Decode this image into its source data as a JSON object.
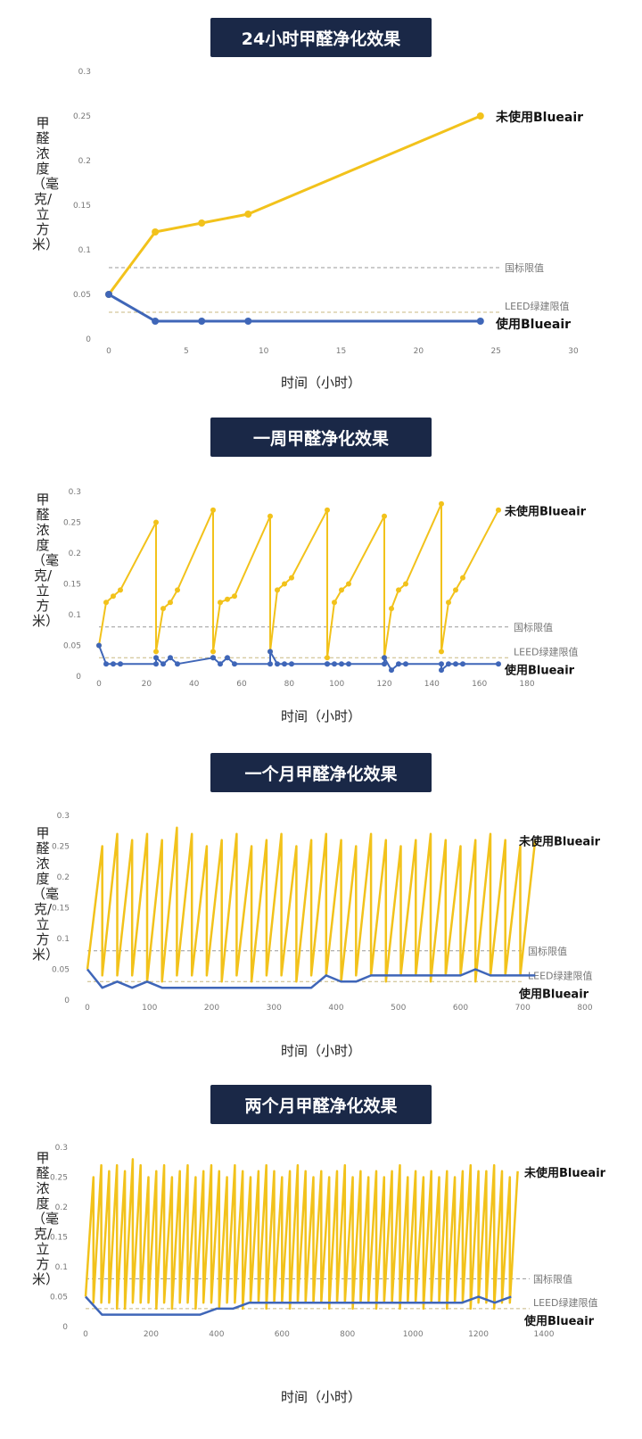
{
  "colors": {
    "unused": "#f2c21b",
    "used": "#3f66b8",
    "title_bg": "#1a2847",
    "limit": "#9a9a9a",
    "leed": "#c8b880"
  },
  "common": {
    "ylabel": "甲醛浓度（毫克/立方米）",
    "xlabel": "时间（小时）",
    "series_unused": "未使用Blueair",
    "series_used": "使用Blueair",
    "national_limit_label": "国标限值",
    "leed_limit_label": "LEED绿建限值",
    "national_limit": 0.08,
    "leed_limit": 0.03
  },
  "chart_data": [
    {
      "type": "line",
      "title": "24小时甲醛净化效果",
      "xlim": [
        0,
        30
      ],
      "ylim": [
        0,
        0.3
      ],
      "xticks": [
        0,
        5,
        10,
        15,
        20,
        25,
        30
      ],
      "yticks": [
        0,
        0.05,
        0.1,
        0.15,
        0.2,
        0.25,
        0.3
      ],
      "series": [
        {
          "name": "未使用Blueair",
          "x": [
            0,
            3,
            6,
            9,
            24
          ],
          "y": [
            0.05,
            0.12,
            0.13,
            0.14,
            0.25
          ]
        },
        {
          "name": "使用Blueair",
          "x": [
            0,
            3,
            6,
            9,
            24
          ],
          "y": [
            0.05,
            0.02,
            0.02,
            0.02,
            0.02
          ]
        }
      ]
    },
    {
      "type": "line",
      "title": "一周甲醛净化效果",
      "xlim": [
        0,
        180
      ],
      "ylim": [
        0,
        0.3
      ],
      "xticks": [
        0,
        20,
        40,
        60,
        80,
        100,
        120,
        140,
        160,
        180
      ],
      "yticks": [
        0,
        0.05,
        0.1,
        0.15,
        0.2,
        0.25,
        0.3
      ],
      "series": [
        {
          "name": "未使用Blueair",
          "x": [
            0,
            3,
            6,
            9,
            24,
            24,
            27,
            30,
            33,
            48,
            48,
            51,
            54,
            57,
            72,
            72,
            75,
            78,
            81,
            96,
            96,
            99,
            102,
            105,
            120,
            120,
            123,
            126,
            129,
            144,
            144,
            147,
            150,
            153,
            168
          ],
          "y": [
            0.05,
            0.12,
            0.13,
            0.14,
            0.25,
            0.04,
            0.11,
            0.12,
            0.14,
            0.27,
            0.04,
            0.12,
            0.125,
            0.13,
            0.26,
            0.04,
            0.14,
            0.15,
            0.16,
            0.27,
            0.03,
            0.12,
            0.14,
            0.15,
            0.26,
            0.03,
            0.11,
            0.14,
            0.15,
            0.28,
            0.04,
            0.12,
            0.14,
            0.16,
            0.27
          ]
        },
        {
          "name": "使用Blueair",
          "x": [
            0,
            3,
            6,
            9,
            24,
            24,
            27,
            30,
            33,
            48,
            48,
            51,
            54,
            57,
            72,
            72,
            75,
            78,
            81,
            96,
            96,
            99,
            102,
            105,
            120,
            120,
            123,
            126,
            129,
            144,
            144,
            147,
            150,
            153,
            168
          ],
          "y": [
            0.05,
            0.02,
            0.02,
            0.02,
            0.02,
            0.03,
            0.02,
            0.03,
            0.02,
            0.03,
            0.03,
            0.02,
            0.03,
            0.02,
            0.02,
            0.04,
            0.02,
            0.02,
            0.02,
            0.02,
            0.02,
            0.02,
            0.02,
            0.02,
            0.02,
            0.03,
            0.01,
            0.02,
            0.02,
            0.02,
            0.01,
            0.02,
            0.02,
            0.02,
            0.02
          ]
        }
      ]
    },
    {
      "type": "line",
      "title": "一个月甲醛净化效果",
      "xlim": [
        0,
        800
      ],
      "ylim": [
        0,
        0.3
      ],
      "xticks": [
        0,
        100,
        200,
        300,
        400,
        500,
        600,
        700,
        800
      ],
      "yticks": [
        0,
        0.05,
        0.1,
        0.15,
        0.2,
        0.25,
        0.3
      ],
      "series": [
        {
          "name": "未使用Blueair",
          "x": [
            0,
            24,
            24,
            48,
            48,
            72,
            72,
            96,
            96,
            120,
            120,
            144,
            144,
            168,
            168,
            192,
            192,
            216,
            216,
            240,
            240,
            264,
            264,
            288,
            288,
            312,
            312,
            336,
            336,
            360,
            360,
            384,
            384,
            408,
            408,
            432,
            432,
            456,
            456,
            480,
            480,
            504,
            504,
            528,
            528,
            552,
            552,
            576,
            576,
            600,
            600,
            624,
            624,
            648,
            648,
            672,
            672,
            696,
            696,
            720
          ],
          "y": [
            0.05,
            0.25,
            0.04,
            0.27,
            0.04,
            0.26,
            0.04,
            0.27,
            0.03,
            0.26,
            0.03,
            0.28,
            0.04,
            0.27,
            0.04,
            0.25,
            0.04,
            0.26,
            0.03,
            0.27,
            0.04,
            0.25,
            0.03,
            0.26,
            0.04,
            0.27,
            0.04,
            0.25,
            0.03,
            0.26,
            0.04,
            0.27,
            0.04,
            0.26,
            0.03,
            0.25,
            0.04,
            0.27,
            0.04,
            0.26,
            0.03,
            0.25,
            0.04,
            0.26,
            0.04,
            0.27,
            0.03,
            0.26,
            0.04,
            0.25,
            0.04,
            0.26,
            0.03,
            0.27,
            0.04,
            0.26,
            0.04,
            0.25,
            0.04,
            0.26
          ]
        },
        {
          "name": "使用Blueair",
          "x": [
            0,
            24,
            48,
            72,
            96,
            120,
            144,
            168,
            192,
            216,
            240,
            264,
            288,
            312,
            336,
            360,
            384,
            408,
            432,
            456,
            480,
            504,
            528,
            552,
            576,
            600,
            624,
            648,
            672,
            696,
            720
          ],
          "y": [
            0.05,
            0.02,
            0.03,
            0.02,
            0.03,
            0.02,
            0.02,
            0.02,
            0.02,
            0.02,
            0.02,
            0.02,
            0.02,
            0.02,
            0.02,
            0.02,
            0.04,
            0.03,
            0.03,
            0.04,
            0.04,
            0.04,
            0.04,
            0.04,
            0.04,
            0.04,
            0.05,
            0.04,
            0.04,
            0.04,
            0.04
          ]
        }
      ]
    },
    {
      "type": "line",
      "title": "两个月甲醛净化效果",
      "xlim": [
        0,
        1400
      ],
      "ylim": [
        0,
        0.3
      ],
      "xticks": [
        0,
        200,
        400,
        600,
        800,
        1000,
        1200,
        1400
      ],
      "yticks": [
        0,
        0.05,
        0.1,
        0.15,
        0.2,
        0.25,
        0.3
      ],
      "series": [
        {
          "name": "未使用Blueair",
          "x": [
            0,
            24,
            24,
            48,
            48,
            72,
            72,
            96,
            96,
            120,
            120,
            144,
            144,
            168,
            168,
            192,
            192,
            216,
            216,
            240,
            240,
            264,
            264,
            288,
            288,
            312,
            312,
            336,
            336,
            360,
            360,
            384,
            384,
            408,
            408,
            432,
            432,
            456,
            456,
            480,
            480,
            504,
            504,
            528,
            528,
            552,
            552,
            576,
            576,
            600,
            600,
            624,
            624,
            648,
            648,
            672,
            672,
            696,
            696,
            720,
            720,
            744,
            744,
            768,
            768,
            792,
            792,
            816,
            816,
            840,
            840,
            864,
            864,
            888,
            888,
            912,
            912,
            936,
            936,
            960,
            960,
            984,
            984,
            1008,
            1008,
            1032,
            1032,
            1056,
            1056,
            1080,
            1080,
            1104,
            1104,
            1128,
            1128,
            1152,
            1152,
            1176,
            1176,
            1200,
            1200,
            1224,
            1224,
            1248,
            1248,
            1272,
            1272,
            1296,
            1296,
            1320
          ],
          "y": [
            0.05,
            0.25,
            0.04,
            0.27,
            0.04,
            0.26,
            0.04,
            0.27,
            0.03,
            0.26,
            0.03,
            0.28,
            0.04,
            0.27,
            0.04,
            0.25,
            0.04,
            0.26,
            0.03,
            0.27,
            0.04,
            0.25,
            0.03,
            0.26,
            0.04,
            0.27,
            0.04,
            0.25,
            0.03,
            0.26,
            0.04,
            0.27,
            0.04,
            0.26,
            0.03,
            0.25,
            0.04,
            0.27,
            0.04,
            0.26,
            0.03,
            0.25,
            0.04,
            0.26,
            0.04,
            0.27,
            0.03,
            0.26,
            0.04,
            0.25,
            0.04,
            0.26,
            0.03,
            0.27,
            0.04,
            0.26,
            0.04,
            0.25,
            0.04,
            0.26,
            0.04,
            0.25,
            0.03,
            0.26,
            0.04,
            0.27,
            0.04,
            0.25,
            0.03,
            0.26,
            0.04,
            0.25,
            0.04,
            0.26,
            0.03,
            0.25,
            0.04,
            0.26,
            0.04,
            0.27,
            0.03,
            0.25,
            0.04,
            0.26,
            0.04,
            0.25,
            0.03,
            0.26,
            0.04,
            0.25,
            0.04,
            0.26,
            0.03,
            0.25,
            0.04,
            0.26,
            0.04,
            0.27,
            0.03,
            0.26,
            0.04,
            0.26,
            0.04,
            0.27,
            0.03,
            0.26,
            0.04,
            0.25,
            0.04,
            0.26
          ]
        },
        {
          "name": "使用Blueair",
          "x": [
            0,
            50,
            100,
            150,
            200,
            250,
            300,
            350,
            400,
            450,
            500,
            550,
            600,
            650,
            700,
            750,
            800,
            850,
            900,
            950,
            1000,
            1050,
            1100,
            1150,
            1200,
            1250,
            1300
          ],
          "y": [
            0.05,
            0.02,
            0.02,
            0.02,
            0.02,
            0.02,
            0.02,
            0.02,
            0.03,
            0.03,
            0.04,
            0.04,
            0.04,
            0.04,
            0.04,
            0.04,
            0.04,
            0.04,
            0.04,
            0.04,
            0.04,
            0.04,
            0.04,
            0.04,
            0.05,
            0.04,
            0.05
          ]
        }
      ]
    }
  ]
}
